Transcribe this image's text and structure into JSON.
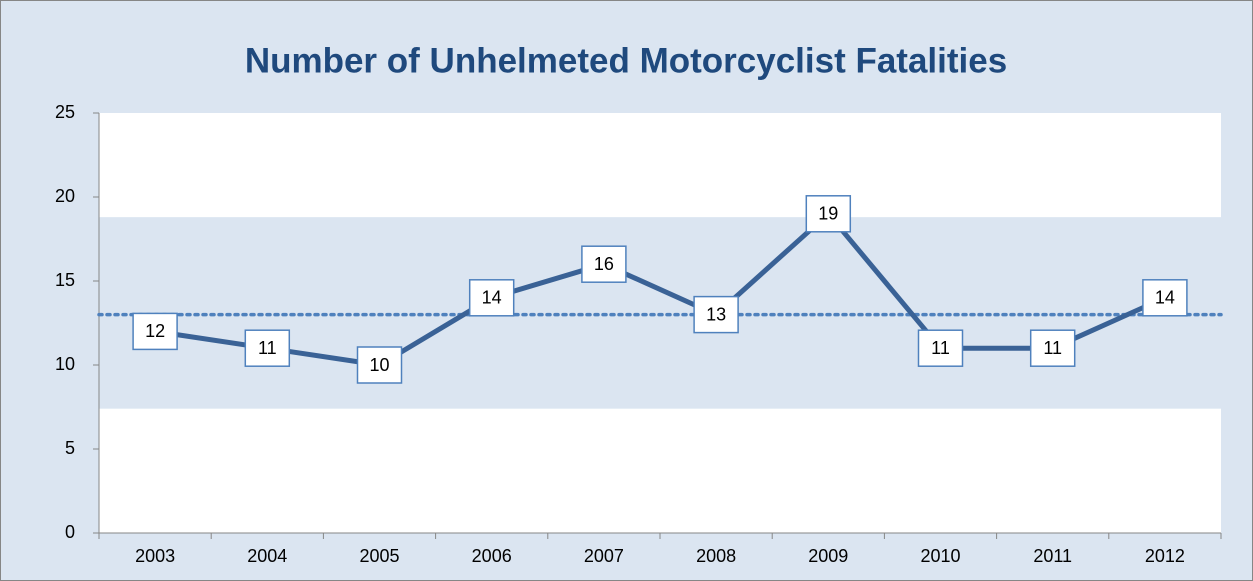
{
  "chart_data": {
    "type": "line",
    "title": "Number of Unhelmeted Motorcyclist Fatalities",
    "categories": [
      "2003",
      "2004",
      "2005",
      "2006",
      "2007",
      "2008",
      "2009",
      "2010",
      "2011",
      "2012"
    ],
    "values": [
      12,
      11,
      10,
      14,
      16,
      13,
      19,
      11,
      11,
      14
    ],
    "color": "#3a6296",
    "reference_line": 13,
    "band": [
      7.4,
      18.8
    ],
    "ylim": [
      0,
      25
    ],
    "yticks": [
      0,
      5,
      10,
      15,
      20,
      25
    ],
    "grid": false
  }
}
